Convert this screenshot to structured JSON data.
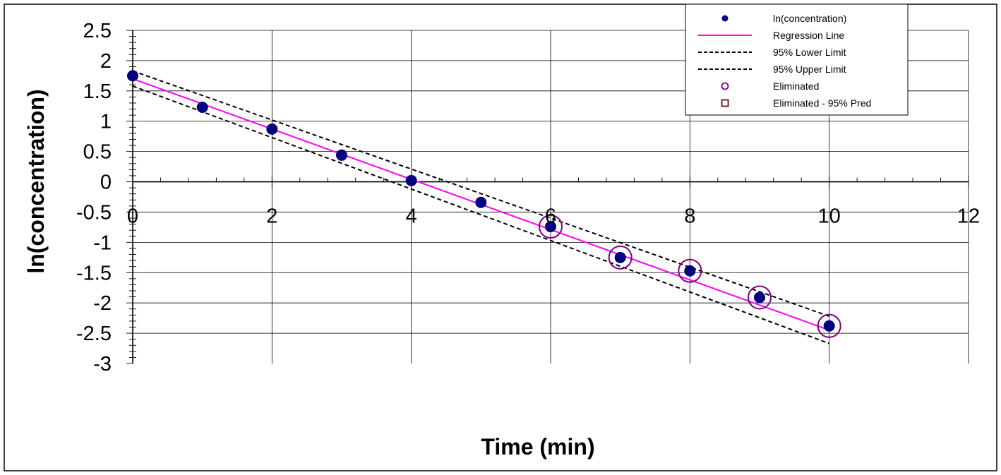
{
  "chart_data": {
    "type": "scatter",
    "title": "",
    "xlabel": "Time (min)",
    "ylabel": "ln(concentration)",
    "xlim": [
      0,
      12
    ],
    "ylim": [
      -3,
      2.5
    ],
    "x_ticks": [
      "0",
      "2",
      "4",
      "6",
      "8",
      "10",
      "12"
    ],
    "y_ticks": [
      "2.5",
      "2",
      "1.5",
      "1",
      "0.5",
      "0",
      "-0.5",
      "-1",
      "-1.5",
      "-2",
      "-2.5",
      "-3"
    ],
    "x_major_tick_values": [
      0,
      2,
      4,
      6,
      8,
      10,
      12
    ],
    "y_major_tick_values": [
      2.5,
      2,
      1.5,
      1,
      0.5,
      0,
      -0.5,
      -1,
      -1.5,
      -2,
      -2.5,
      -3
    ],
    "x_minor_step": 0.4,
    "y_minor_step": 0.1,
    "grid": true,
    "legend_position": "top-right",
    "legend": [
      {
        "label": "ln(concentration)",
        "marker": "filled-circle",
        "color": "#000080"
      },
      {
        "label": "Regression Line",
        "marker": "solid-line",
        "color": "#ff00ff"
      },
      {
        "label": "95% Lower Limit",
        "marker": "dashed-line",
        "color": "#000000"
      },
      {
        "label": "95% Upper Limit",
        "marker": "dashed-line",
        "color": "#000000"
      },
      {
        "label": "Eliminated",
        "marker": "open-circle",
        "color": "#800080"
      },
      {
        "label": "Eliminated - 95% Pred",
        "marker": "open-square",
        "color": "#800000"
      }
    ],
    "series": [
      {
        "name": "ln(concentration)",
        "x": [
          0,
          1,
          2,
          3,
          4,
          5,
          6,
          7,
          8,
          9,
          10
        ],
        "y": [
          1.75,
          1.23,
          0.87,
          0.44,
          0.02,
          -0.34,
          -0.74,
          -1.25,
          -1.47,
          -1.91,
          -2.38
        ],
        "color": "#000080"
      },
      {
        "name": "Regression Line",
        "x": [
          0,
          10
        ],
        "y": [
          1.7,
          -2.45
        ],
        "color": "#ff00ff"
      },
      {
        "name": "95% Lower Limit",
        "x": [
          0,
          10
        ],
        "y": [
          1.58,
          -2.67
        ],
        "color": "#000000"
      },
      {
        "name": "95% Upper Limit",
        "x": [
          0,
          10
        ],
        "y": [
          1.83,
          -2.22
        ],
        "color": "#000000"
      },
      {
        "name": "Eliminated",
        "x": [
          6,
          7,
          8,
          9,
          10
        ],
        "y": [
          -0.74,
          -1.25,
          -1.47,
          -1.91,
          -2.38
        ],
        "color": "#800080"
      },
      {
        "name": "Eliminated - 95% Pred",
        "x": [],
        "y": [],
        "color": "#800000"
      }
    ]
  }
}
